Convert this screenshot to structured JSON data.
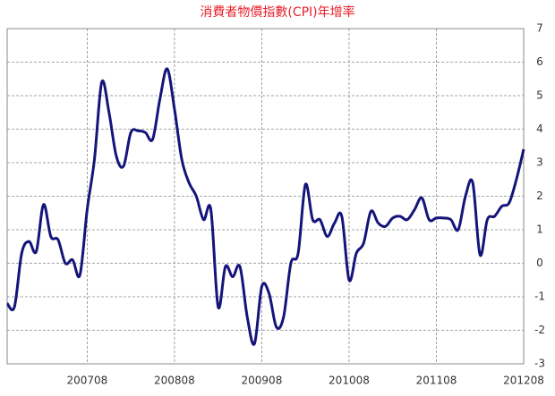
{
  "chart_data": {
    "type": "line",
    "title": "消費者物價指數(CPI)年增率",
    "categories": [
      null,
      null,
      null,
      null,
      null,
      null,
      null,
      null,
      null,
      null,
      null,
      "200708",
      null,
      null,
      null,
      null,
      null,
      null,
      null,
      null,
      null,
      null,
      null,
      "200808",
      null,
      null,
      null,
      null,
      null,
      null,
      null,
      null,
      null,
      null,
      null,
      "200908",
      null,
      null,
      null,
      null,
      null,
      null,
      null,
      null,
      null,
      null,
      null,
      "201008",
      null,
      null,
      null,
      null,
      null,
      null,
      null,
      null,
      null,
      null,
      null,
      "201108",
      null,
      null,
      null,
      null,
      null,
      null,
      null,
      null,
      null,
      null,
      null,
      "201208"
    ],
    "series": [
      {
        "color": "#14147a",
        "values": [
          -1.2,
          -1.3,
          0.3,
          0.65,
          0.35,
          1.75,
          0.8,
          0.7,
          0.0,
          0.1,
          -0.35,
          1.6,
          3.1,
          5.4,
          4.5,
          3.2,
          2.9,
          3.9,
          3.95,
          3.9,
          3.7,
          4.9,
          5.8,
          4.6,
          3.1,
          2.4,
          2.0,
          1.3,
          1.6,
          -1.3,
          -0.1,
          -0.4,
          -0.1,
          -1.6,
          -2.4,
          -0.7,
          -0.9,
          -1.9,
          -1.6,
          0.0,
          0.3,
          2.35,
          1.3,
          1.3,
          0.8,
          1.2,
          1.4,
          -0.5,
          0.3,
          0.6,
          1.55,
          1.2,
          1.1,
          1.35,
          1.4,
          1.3,
          1.6,
          1.95,
          1.3,
          1.35,
          1.35,
          1.3,
          1.0,
          2.0,
          2.4,
          0.25,
          1.3,
          1.4,
          1.7,
          1.8,
          2.5,
          3.4
        ]
      }
    ],
    "ylim": [
      -3,
      7
    ],
    "yticks": [
      -3,
      -2,
      -1,
      0,
      1,
      2,
      3,
      4,
      5,
      6,
      7
    ],
    "grid": true
  }
}
